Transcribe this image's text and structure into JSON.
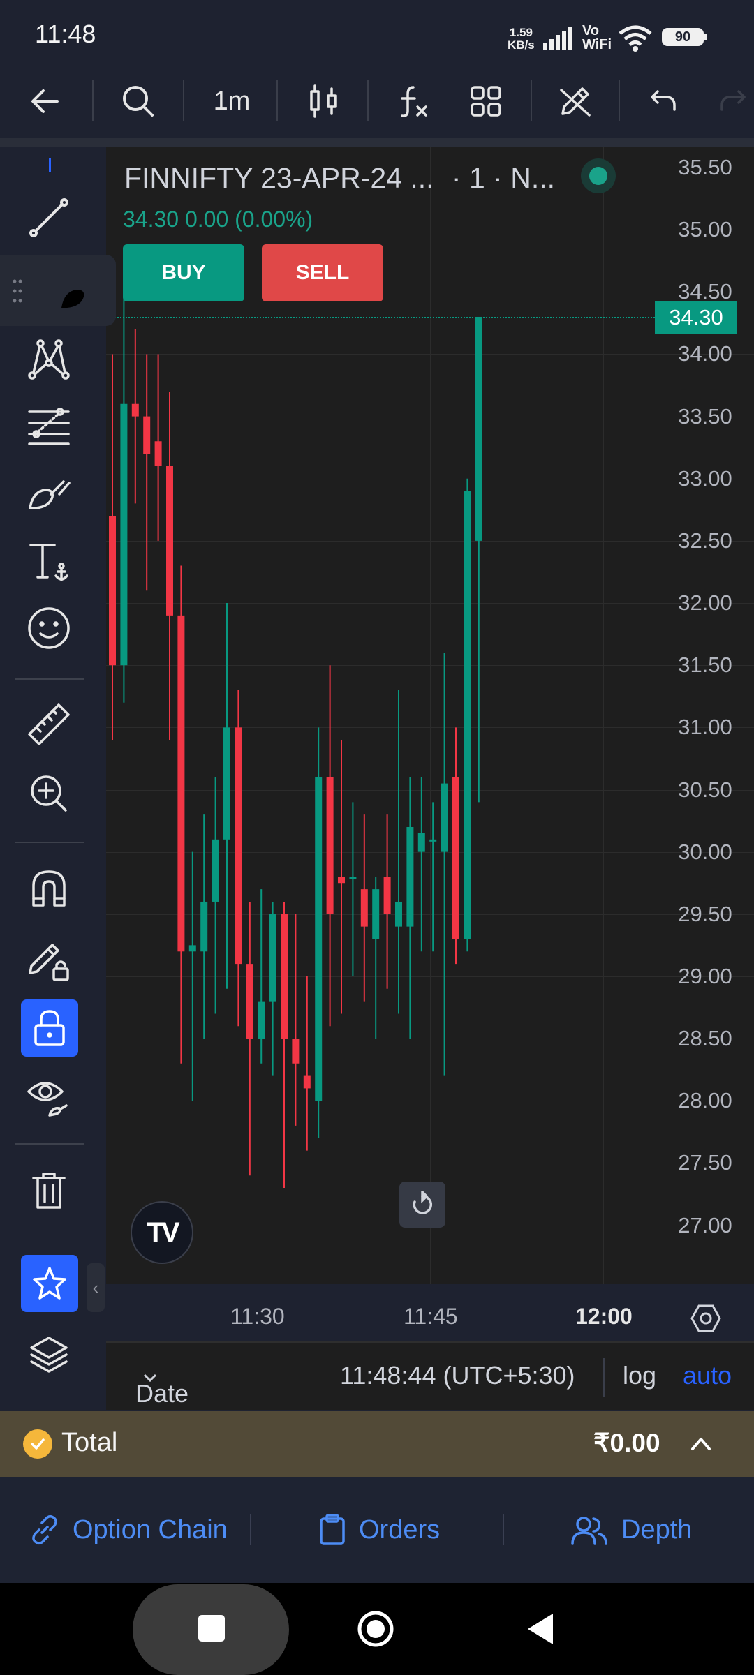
{
  "status_bar": {
    "time": "11:48",
    "net_speed_value": "1.59",
    "net_speed_unit": "KB/s",
    "vo_top": "Vo",
    "vo_bottom": "WiFi",
    "battery": "90"
  },
  "toolbar": {
    "interval": "1m",
    "icons": [
      "back-arrow-icon",
      "search-icon",
      "candles-icon",
      "indicators-icon",
      "layouts-icon",
      "drawing-edit-icon",
      "undo-icon",
      "redo-icon"
    ]
  },
  "chart": {
    "symbol": "FINNIFTY 23-APR-24 ...",
    "symbol_suffix": "· 1 · N...",
    "ohlc": "34.30  0.00 (0.00%)",
    "buy_label": "BUY",
    "sell_label": "SELL",
    "last_price": "34.30",
    "up_color": "#089981",
    "down_color": "#f23645",
    "logo_text": "TV"
  },
  "chart_data": {
    "type": "candlestick",
    "x_ticks": [
      "11:30",
      "11:45",
      "12:00"
    ],
    "y_ticks": [
      "35.50",
      "35.00",
      "34.50",
      "34.00",
      "33.50",
      "33.00",
      "32.50",
      "32.00",
      "31.50",
      "31.00",
      "30.50",
      "30.00",
      "29.50",
      "29.00",
      "28.50",
      "28.00",
      "27.50",
      "27.00"
    ],
    "ylim": [
      26.8,
      35.7
    ],
    "candles": [
      {
        "o": 32.7,
        "h": 34.0,
        "l": 30.9,
        "c": 31.5
      },
      {
        "o": 31.5,
        "h": 34.5,
        "l": 31.2,
        "c": 33.6
      },
      {
        "o": 33.6,
        "h": 34.2,
        "l": 32.8,
        "c": 33.5
      },
      {
        "o": 33.5,
        "h": 34.0,
        "l": 32.1,
        "c": 33.2
      },
      {
        "o": 33.3,
        "h": 34.0,
        "l": 32.5,
        "c": 33.1
      },
      {
        "o": 33.1,
        "h": 33.7,
        "l": 30.9,
        "c": 31.9
      },
      {
        "o": 31.9,
        "h": 32.3,
        "l": 28.3,
        "c": 29.2
      },
      {
        "o": 29.2,
        "h": 30.0,
        "l": 28.0,
        "c": 29.25
      },
      {
        "o": 29.2,
        "h": 30.3,
        "l": 28.5,
        "c": 29.6
      },
      {
        "o": 29.6,
        "h": 30.6,
        "l": 28.7,
        "c": 30.1
      },
      {
        "o": 30.1,
        "h": 32.0,
        "l": 28.9,
        "c": 31.0
      },
      {
        "o": 31.0,
        "h": 31.3,
        "l": 28.6,
        "c": 29.1
      },
      {
        "o": 29.1,
        "h": 29.6,
        "l": 27.4,
        "c": 28.5
      },
      {
        "o": 28.5,
        "h": 29.7,
        "l": 28.3,
        "c": 28.8
      },
      {
        "o": 28.8,
        "h": 29.6,
        "l": 28.2,
        "c": 29.5
      },
      {
        "o": 29.5,
        "h": 29.6,
        "l": 27.3,
        "c": 28.5
      },
      {
        "o": 28.5,
        "h": 29.5,
        "l": 27.8,
        "c": 28.3
      },
      {
        "o": 28.2,
        "h": 29.0,
        "l": 27.6,
        "c": 28.1
      },
      {
        "o": 28.0,
        "h": 31.0,
        "l": 27.7,
        "c": 30.6
      },
      {
        "o": 30.6,
        "h": 31.5,
        "l": 28.6,
        "c": 29.5
      },
      {
        "o": 29.8,
        "h": 30.9,
        "l": 28.7,
        "c": 29.75
      },
      {
        "o": 29.8,
        "h": 30.4,
        "l": 29.0,
        "c": 29.8
      },
      {
        "o": 29.7,
        "h": 30.3,
        "l": 28.8,
        "c": 29.4
      },
      {
        "o": 29.3,
        "h": 29.8,
        "l": 28.5,
        "c": 29.7
      },
      {
        "o": 29.8,
        "h": 30.3,
        "l": 28.9,
        "c": 29.5
      },
      {
        "o": 29.4,
        "h": 31.3,
        "l": 28.7,
        "c": 29.6
      },
      {
        "o": 29.4,
        "h": 30.6,
        "l": 28.5,
        "c": 30.2
      },
      {
        "o": 30.0,
        "h": 30.6,
        "l": 29.2,
        "c": 30.15
      },
      {
        "o": 30.1,
        "h": 30.4,
        "l": 29.2,
        "c": 30.1
      },
      {
        "o": 30.0,
        "h": 31.6,
        "l": 28.2,
        "c": 30.55
      },
      {
        "o": 30.6,
        "h": 31.0,
        "l": 29.1,
        "c": 29.3
      },
      {
        "o": 29.3,
        "h": 33.0,
        "l": 29.2,
        "c": 32.9
      },
      {
        "o": 32.5,
        "h": 34.3,
        "l": 30.4,
        "c": 34.3
      }
    ],
    "last_price": 34.3,
    "grid": true,
    "scale": "auto"
  },
  "x_axis": {
    "labels": [
      "11:30",
      "11:45",
      "12:00"
    ]
  },
  "bottom_chart_bar": {
    "date_range": "Date Range",
    "timestamp": "11:48:44 (UTC+5:30)",
    "log": "log",
    "auto": "auto"
  },
  "total_bar": {
    "label": "Total",
    "value": "₹0.00"
  },
  "bottom_tabs": {
    "option_chain": "Option Chain",
    "orders": "Orders",
    "depth": "Depth"
  },
  "left_toolbar": {
    "icons": [
      "trend-line-icon",
      "brush-icon",
      "pattern-icon",
      "fib-icon",
      "brush-icon",
      "text-icon",
      "emoji-icon",
      "ruler-icon",
      "zoom-in-icon",
      "magnet-icon",
      "lock-drawing-icon",
      "lock-icon",
      "eye-icon",
      "trash-icon",
      "star-icon",
      "layers-icon"
    ]
  }
}
